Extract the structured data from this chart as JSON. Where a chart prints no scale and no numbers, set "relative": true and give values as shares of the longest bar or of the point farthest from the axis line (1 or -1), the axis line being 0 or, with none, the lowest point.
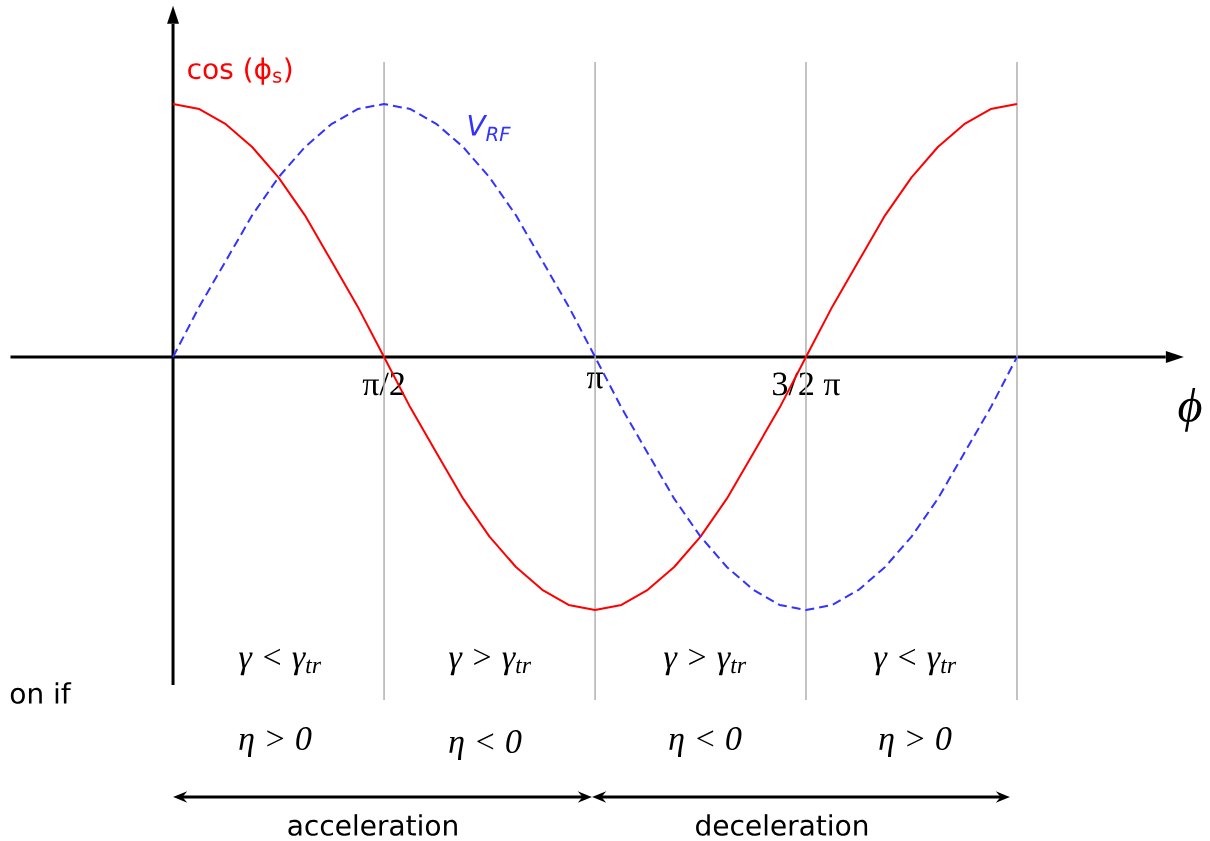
{
  "chart_data": {
    "type": "line",
    "relative": true,
    "x": [
      0,
      0.196,
      0.393,
      0.589,
      0.785,
      0.982,
      1.178,
      1.374,
      1.571,
      1.767,
      1.963,
      2.16,
      2.356,
      2.553,
      2.749,
      2.945,
      3.142,
      3.338,
      3.534,
      3.731,
      3.927,
      4.123,
      4.32,
      4.516,
      4.712,
      4.909,
      5.105,
      5.301,
      5.498,
      5.694,
      5.89,
      6.087,
      6.283
    ],
    "series": [
      {
        "name": "cos (ϕ$_{s}$)",
        "color": "#ff0000",
        "line_style": "solid",
        "values": [
          1,
          0.98,
          0.92,
          0.83,
          0.71,
          0.56,
          0.38,
          0.2,
          0,
          -0.2,
          -0.38,
          -0.56,
          -0.71,
          -0.83,
          -0.92,
          -0.98,
          -1,
          -0.98,
          -0.92,
          -0.83,
          -0.71,
          -0.56,
          -0.38,
          -0.2,
          0,
          0.2,
          0.38,
          0.56,
          0.71,
          0.83,
          0.92,
          0.98,
          1
        ]
      },
      {
        "name": "V$_{RF}$",
        "color": "#3333ff",
        "line_style": "dashed",
        "values": [
          0,
          0.2,
          0.38,
          0.56,
          0.71,
          0.83,
          0.92,
          0.98,
          1,
          0.98,
          0.92,
          0.83,
          0.71,
          0.56,
          0.38,
          0.2,
          0,
          -0.2,
          -0.38,
          -0.56,
          -0.71,
          -0.83,
          -0.92,
          -0.98,
          -1,
          -0.98,
          -0.92,
          -0.83,
          -0.71,
          -0.56,
          -0.38,
          -0.2,
          0
        ]
      }
    ],
    "xlim": [
      -1.21,
      7.39
    ],
    "xticks": [
      {
        "value": 1.571,
        "label": "π/2"
      },
      {
        "value": 3.142,
        "label": "π"
      },
      {
        "value": 4.712,
        "label": "3/2 π"
      }
    ],
    "xlabel": "ϕ",
    "ref_lines": [
      {
        "axis": "x",
        "value": 1.571,
        "color": "#b0b0b0"
      },
      {
        "axis": "x",
        "value": 3.142,
        "color": "#b0b0b0"
      },
      {
        "axis": "x",
        "value": 4.712,
        "color": "#b0b0b0"
      },
      {
        "axis": "x",
        "value": 6.283,
        "color": "#b0b0b0"
      }
    ],
    "annotations": [
      "γ < γ$_{tr}$",
      "γ > γ$_{tr}$",
      "γ > γ$_{tr}$",
      "γ < γ$_{tr}$",
      "η > 0",
      "η < 0",
      "η < 0",
      "η > 0",
      "acceleration",
      "deceleration",
      "on if"
    ],
    "grid": false,
    "legend": false,
    "marker": "none"
  }
}
